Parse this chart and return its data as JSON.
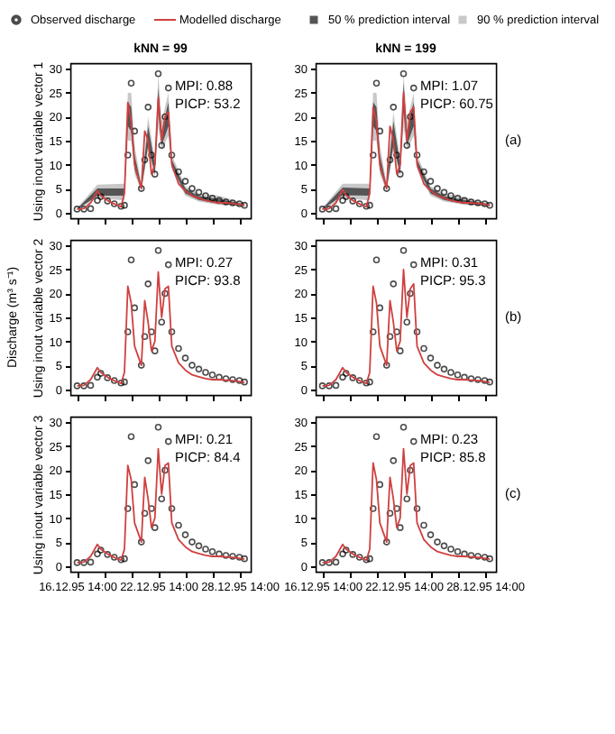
{
  "chart_data": [
    {
      "type": "line",
      "title": "kNN = 99",
      "ylabel": "Using inout variable vector 1",
      "legend": "top",
      "tick_labels": "y",
      "annotations": [
        "MPI:  0.88",
        "PICP: 53.2"
      ],
      "xlim": [
        "1995-12-16T02:00",
        "1995-12-29T10:00"
      ],
      "ylim": [
        -1.2,
        31.2
      ],
      "yticks": [
        0,
        5,
        10,
        15,
        20,
        25,
        30
      ],
      "xticks": [
        {
          "value": "1995-12-16T14:00",
          "label": null
        },
        {
          "value": "1995-12-18T14:00",
          "label": null
        },
        {
          "value": "1995-12-20T14:00",
          "label": null
        },
        {
          "value": "1995-12-22T14:00",
          "label": null
        },
        {
          "value": "1995-12-24T14:00",
          "label": null
        },
        {
          "value": "1995-12-26T14:00",
          "label": null
        },
        {
          "value": "1995-12-28T14:00",
          "label": null
        }
      ],
      "x": [
        "1995-12-16T14:00",
        "1995-12-17T02:00",
        "1995-12-17T14:00",
        "1995-12-18T02:00",
        "1995-12-18T08:00",
        "1995-12-18T20:00",
        "1995-12-19T08:00",
        "1995-12-19T20:00",
        "1995-12-20T02:00",
        "1995-12-20T08:00",
        "1995-12-20T14:00",
        "1995-12-20T20:00",
        "1995-12-21T08:00",
        "1995-12-21T14:00",
        "1995-12-21T20:00",
        "1995-12-22T02:00",
        "1995-12-22T08:00",
        "1995-12-22T14:00",
        "1995-12-22T20:00",
        "1995-12-23T02:00",
        "1995-12-23T08:00",
        "1995-12-23T14:00",
        "1995-12-24T02:00",
        "1995-12-24T14:00",
        "1995-12-25T02:00",
        "1995-12-25T14:00",
        "1995-12-26T02:00",
        "1995-12-26T14:00",
        "1995-12-27T02:00",
        "1995-12-27T14:00",
        "1995-12-28T02:00",
        "1995-12-28T14:00",
        "1995-12-28T23:00"
      ],
      "series": [
        {
          "name": "Observed discharge",
          "type": "scatter",
          "marker": "circle",
          "color": "#000000",
          "values": [
            0.7,
            0.7,
            0.8,
            2.5,
            3.3,
            2.4,
            1.8,
            1.3,
            1.5,
            12,
            27,
            17,
            5,
            11,
            22,
            12,
            8,
            29,
            14,
            20,
            26,
            12,
            8.5,
            6.5,
            5,
            4.2,
            3.5,
            3,
            2.5,
            2.2,
            2,
            1.8,
            1.5
          ]
        },
        {
          "name": "Modelled discharge",
          "color": "#d04040",
          "values": [
            0.7,
            0.8,
            2,
            4.5,
            3.5,
            2.5,
            1.8,
            1.2,
            4,
            23,
            19,
            10,
            5,
            17,
            15,
            8,
            10,
            24,
            15,
            20,
            21,
            10,
            6,
            4.5,
            3.5,
            3,
            2.5,
            2.2,
            2,
            2,
            1.9,
            1.7,
            1.5
          ]
        },
        {
          "name": "50 % prediction interval",
          "type": "area",
          "color": "#555555",
          "x": [
            "1995-12-16T14:00",
            "1995-12-18T02:00",
            "1995-12-20T02:00",
            "1995-12-20T08:00",
            "1995-12-20T14:00",
            "1995-12-20T20:00",
            "1995-12-21T08:00",
            "1995-12-21T20:00",
            "1995-12-22T08:00",
            "1995-12-22T14:00",
            "1995-12-22T20:00",
            "1995-12-23T08:00",
            "1995-12-23T14:00",
            "1995-12-24T14:00",
            "1995-12-25T14:00",
            "1995-12-27T02:00",
            "1995-12-28T23:00"
          ],
          "lower": [
            0.65,
            3.5,
            3.5,
            18,
            17,
            9,
            4.8,
            14,
            8,
            21,
            14,
            18,
            9.5,
            4,
            2.6,
            1.8,
            1.4
          ],
          "values": [
            null,
            null,
            null,
            null,
            null,
            null,
            null,
            null,
            null,
            null,
            null,
            null,
            null,
            null,
            null,
            null,
            null
          ],
          "upper": [
            0.8,
            5,
            5,
            23,
            22,
            12,
            5.5,
            18,
            10,
            26,
            17,
            23,
            11,
            5,
            3.4,
            2.8,
            1.7
          ]
        },
        {
          "name": "90 % prediction interval",
          "type": "area",
          "color": "#c8c8c8",
          "x": [
            "1995-12-16T14:00",
            "1995-12-18T02:00",
            "1995-12-20T02:00",
            "1995-12-20T08:00",
            "1995-12-20T14:00",
            "1995-12-20T20:00",
            "1995-12-21T08:00",
            "1995-12-21T20:00",
            "1995-12-22T08:00",
            "1995-12-22T14:00",
            "1995-12-22T20:00",
            "1995-12-23T08:00",
            "1995-12-23T14:00",
            "1995-12-24T14:00",
            "1995-12-25T14:00",
            "1995-12-27T02:00",
            "1995-12-28T23:00"
          ],
          "lower": [
            0.6,
            3,
            2.5,
            15,
            15,
            8,
            4.5,
            13,
            7.5,
            18,
            13,
            16,
            9,
            3.5,
            2.3,
            1.6,
            1.3
          ],
          "values": [
            null,
            null,
            null,
            null,
            null,
            null,
            null,
            null,
            null,
            null,
            null,
            null,
            null,
            null,
            null,
            null,
            null
          ],
          "upper": [
            0.9,
            5.8,
            6,
            25,
            25,
            14,
            6,
            20,
            11,
            29,
            19,
            25,
            12,
            5.5,
            4,
            3.5,
            1.9
          ]
        }
      ]
    },
    {
      "type": "line",
      "title": "kNN = 199",
      "tick_labels": "y",
      "annotations": [
        "MPI:  1.07",
        "PICP: 60.75",
        "(a)"
      ],
      "xlim": [
        "1995-12-16T02:00",
        "1995-12-29T10:00"
      ],
      "ylim": [
        -1.2,
        31.2
      ],
      "yticks": [
        0,
        5,
        10,
        15,
        20,
        25,
        30
      ],
      "xticks": [
        {
          "value": "1995-12-16T14:00",
          "label": null
        },
        {
          "value": "1995-12-18T14:00",
          "label": null
        },
        {
          "value": "1995-12-20T14:00",
          "label": null
        },
        {
          "value": "1995-12-22T14:00",
          "label": null
        },
        {
          "value": "1995-12-24T14:00",
          "label": null
        },
        {
          "value": "1995-12-26T14:00",
          "label": null
        },
        {
          "value": "1995-12-28T14:00",
          "label": null
        }
      ],
      "x": [
        "1995-12-16T14:00",
        "1995-12-17T02:00",
        "1995-12-17T14:00",
        "1995-12-18T02:00",
        "1995-12-18T08:00",
        "1995-12-18T20:00",
        "1995-12-19T08:00",
        "1995-12-19T20:00",
        "1995-12-20T02:00",
        "1995-12-20T08:00",
        "1995-12-20T14:00",
        "1995-12-20T20:00",
        "1995-12-21T08:00",
        "1995-12-21T14:00",
        "1995-12-21T20:00",
        "1995-12-22T02:00",
        "1995-12-22T08:00",
        "1995-12-22T14:00",
        "1995-12-22T20:00",
        "1995-12-23T02:00",
        "1995-12-23T08:00",
        "1995-12-23T14:00",
        "1995-12-24T02:00",
        "1995-12-24T14:00",
        "1995-12-25T02:00",
        "1995-12-25T14:00",
        "1995-12-26T02:00",
        "1995-12-26T14:00",
        "1995-12-27T02:00",
        "1995-12-27T14:00",
        "1995-12-28T02:00",
        "1995-12-28T14:00",
        "1995-12-28T23:00"
      ],
      "series": [
        {
          "type": "scatter",
          "marker": "circle",
          "color": "#000000",
          "values": [
            0.7,
            0.7,
            0.8,
            2.5,
            3.3,
            2.4,
            1.8,
            1.3,
            1.5,
            12,
            27,
            17,
            5,
            11,
            22,
            12,
            8,
            29,
            14,
            20,
            26,
            12,
            8.5,
            6.5,
            5,
            4.2,
            3.5,
            3,
            2.5,
            2.2,
            2,
            1.8,
            1.5
          ]
        },
        {
          "color": "#d04040",
          "values": [
            0.7,
            0.8,
            2,
            4.8,
            3.6,
            2.5,
            1.8,
            1.2,
            4,
            22,
            19,
            10,
            5,
            18,
            15,
            8,
            10,
            25,
            15,
            21,
            22,
            10,
            6,
            4.5,
            3.5,
            3,
            2.5,
            2.2,
            2,
            2,
            1.9,
            1.7,
            1.5
          ]
        },
        {
          "type": "area",
          "color": "#555555",
          "x": [
            "1995-12-16T14:00",
            "1995-12-18T02:00",
            "1995-12-20T02:00",
            "1995-12-20T08:00",
            "1995-12-20T14:00",
            "1995-12-20T20:00",
            "1995-12-21T08:00",
            "1995-12-21T20:00",
            "1995-12-22T08:00",
            "1995-12-22T14:00",
            "1995-12-22T20:00",
            "1995-12-23T08:00",
            "1995-12-23T14:00",
            "1995-12-24T14:00",
            "1995-12-25T14:00",
            "1995-12-27T02:00",
            "1995-12-28T23:00"
          ],
          "lower": [
            0.65,
            3.6,
            3.5,
            18,
            17,
            9,
            4.8,
            14,
            8,
            21,
            14,
            18,
            9.5,
            4,
            2.6,
            1.8,
            1.4
          ],
          "values": [
            null,
            null,
            null,
            null,
            null,
            null,
            null,
            null,
            null,
            null,
            null,
            null,
            null,
            null,
            null,
            null,
            null
          ],
          "upper": [
            0.8,
            5.2,
            5,
            23,
            22,
            12,
            5.5,
            19,
            10,
            27,
            17,
            23,
            11,
            5,
            3.4,
            2.6,
            1.7
          ]
        },
        {
          "type": "area",
          "color": "#c8c8c8",
          "x": [
            "1995-12-16T14:00",
            "1995-12-18T02:00",
            "1995-12-20T02:00",
            "1995-12-20T08:00",
            "1995-12-20T14:00",
            "1995-12-20T20:00",
            "1995-12-21T08:00",
            "1995-12-21T20:00",
            "1995-12-22T08:00",
            "1995-12-22T14:00",
            "1995-12-22T20:00",
            "1995-12-23T08:00",
            "1995-12-23T14:00",
            "1995-12-24T14:00",
            "1995-12-25T14:00",
            "1995-12-27T02:00",
            "1995-12-28T23:00"
          ],
          "lower": [
            0.6,
            3,
            2.5,
            15,
            15,
            8,
            4.5,
            13,
            7.5,
            18,
            13,
            16,
            9,
            3.5,
            2.3,
            1.6,
            1.3
          ],
          "values": [
            null,
            null,
            null,
            null,
            null,
            null,
            null,
            null,
            null,
            null,
            null,
            null,
            null,
            null,
            null,
            null,
            null
          ],
          "upper": [
            0.9,
            6,
            6,
            25,
            25,
            14,
            6,
            21,
            11,
            29,
            19,
            25,
            12,
            5.5,
            4,
            3.2,
            1.9
          ]
        }
      ]
    },
    {
      "type": "line",
      "ylabel": "Using inout variable vector 2\nDischarge (m³ s⁻¹)",
      "tick_labels": "y",
      "annotations": [
        "MPI:  0.27",
        "PICP: 93.8"
      ],
      "xlim": [
        "1995-12-16T02:00",
        "1995-12-29T10:00"
      ],
      "ylim": [
        -1.2,
        31.2
      ],
      "yticks": [
        0,
        5,
        10,
        15,
        20,
        25,
        30
      ],
      "xticks": [
        {
          "value": "1995-12-16T14:00",
          "label": null
        },
        {
          "value": "1995-12-18T14:00",
          "label": null
        },
        {
          "value": "1995-12-20T14:00",
          "label": null
        },
        {
          "value": "1995-12-22T14:00",
          "label": null
        },
        {
          "value": "1995-12-24T14:00",
          "label": null
        },
        {
          "value": "1995-12-26T14:00",
          "label": null
        },
        {
          "value": "1995-12-28T14:00",
          "label": null
        }
      ],
      "x": [
        "1995-12-16T14:00",
        "1995-12-17T02:00",
        "1995-12-17T14:00",
        "1995-12-18T02:00",
        "1995-12-18T08:00",
        "1995-12-18T20:00",
        "1995-12-19T08:00",
        "1995-12-19T20:00",
        "1995-12-20T02:00",
        "1995-12-20T08:00",
        "1995-12-20T14:00",
        "1995-12-20T20:00",
        "1995-12-21T08:00",
        "1995-12-21T14:00",
        "1995-12-21T20:00",
        "1995-12-22T02:00",
        "1995-12-22T08:00",
        "1995-12-22T14:00",
        "1995-12-22T20:00",
        "1995-12-23T02:00",
        "1995-12-23T08:00",
        "1995-12-23T14:00",
        "1995-12-24T02:00",
        "1995-12-24T14:00",
        "1995-12-25T02:00",
        "1995-12-25T14:00",
        "1995-12-26T02:00",
        "1995-12-26T14:00",
        "1995-12-27T02:00",
        "1995-12-27T14:00",
        "1995-12-28T02:00",
        "1995-12-28T14:00",
        "1995-12-28T23:00"
      ],
      "series": [
        {
          "type": "scatter",
          "marker": "circle",
          "color": "#000000",
          "values": [
            0.7,
            0.7,
            0.8,
            2.5,
            3.3,
            2.4,
            1.8,
            1.3,
            1.5,
            12,
            27,
            17,
            5,
            11,
            22,
            12,
            8,
            29,
            14,
            20,
            26,
            12,
            8.5,
            6.5,
            5,
            4.2,
            3.5,
            3,
            2.5,
            2.2,
            2,
            1.8,
            1.5
          ]
        },
        {
          "color": "#d04040",
          "values": [
            0.7,
            0.8,
            2,
            4.5,
            3.5,
            2.5,
            1.8,
            1.2,
            3.5,
            21.5,
            18,
            9,
            5,
            18.5,
            14,
            8,
            10,
            24.5,
            15,
            21,
            21.5,
            9,
            5.5,
            4,
            3,
            2.6,
            2.2,
            2,
            2,
            1.9,
            1.8,
            1.6,
            1.4
          ]
        }
      ]
    },
    {
      "type": "line",
      "tick_labels": "y",
      "annotations": [
        "MPI:  0.31",
        "PICP: 95.3",
        "(b)"
      ],
      "xlim": [
        "1995-12-16T02:00",
        "1995-12-29T10:00"
      ],
      "ylim": [
        -1.2,
        31.2
      ],
      "yticks": [
        0,
        5,
        10,
        15,
        20,
        25,
        30
      ],
      "xticks": [
        {
          "value": "1995-12-16T14:00",
          "label": null
        },
        {
          "value": "1995-12-18T14:00",
          "label": null
        },
        {
          "value": "1995-12-20T14:00",
          "label": null
        },
        {
          "value": "1995-12-22T14:00",
          "label": null
        },
        {
          "value": "1995-12-24T14:00",
          "label": null
        },
        {
          "value": "1995-12-26T14:00",
          "label": null
        },
        {
          "value": "1995-12-28T14:00",
          "label": null
        }
      ],
      "x": [
        "1995-12-16T14:00",
        "1995-12-17T02:00",
        "1995-12-17T14:00",
        "1995-12-18T02:00",
        "1995-12-18T08:00",
        "1995-12-18T20:00",
        "1995-12-19T08:00",
        "1995-12-19T20:00",
        "1995-12-20T02:00",
        "1995-12-20T08:00",
        "1995-12-20T14:00",
        "1995-12-20T20:00",
        "1995-12-21T08:00",
        "1995-12-21T14:00",
        "1995-12-21T20:00",
        "1995-12-22T02:00",
        "1995-12-22T08:00",
        "1995-12-22T14:00",
        "1995-12-22T20:00",
        "1995-12-23T02:00",
        "1995-12-23T08:00",
        "1995-12-23T14:00",
        "1995-12-24T02:00",
        "1995-12-24T14:00",
        "1995-12-25T02:00",
        "1995-12-25T14:00",
        "1995-12-26T02:00",
        "1995-12-26T14:00",
        "1995-12-27T02:00",
        "1995-12-27T14:00",
        "1995-12-28T02:00",
        "1995-12-28T14:00",
        "1995-12-28T23:00"
      ],
      "series": [
        {
          "type": "scatter",
          "marker": "circle",
          "color": "#000000",
          "values": [
            0.7,
            0.7,
            0.8,
            2.5,
            3.3,
            2.4,
            1.8,
            1.3,
            1.5,
            12,
            27,
            17,
            5,
            11,
            22,
            12,
            8,
            29,
            14,
            20,
            26,
            12,
            8.5,
            6.5,
            5,
            4.2,
            3.5,
            3,
            2.5,
            2.2,
            2,
            1.8,
            1.5
          ]
        },
        {
          "color": "#d04040",
          "values": [
            0.7,
            0.8,
            2,
            4.5,
            3.5,
            2.5,
            1.8,
            1.2,
            3.5,
            21.5,
            18,
            9,
            5,
            18.5,
            14,
            8,
            10,
            25,
            15,
            21,
            22,
            9,
            5.5,
            4,
            3,
            2.6,
            2.2,
            2,
            2,
            1.9,
            1.8,
            1.6,
            1.4
          ]
        }
      ]
    },
    {
      "type": "line",
      "ylabel": "Using inout variable vector 3",
      "annotations": [
        "MPI:  0.21",
        "PICP: 84.4"
      ],
      "xlim": [
        "1995-12-16T02:00",
        "1995-12-29T10:00"
      ],
      "ylim": [
        -1.2,
        31.2
      ],
      "yticks": [
        0,
        5,
        10,
        15,
        20,
        25,
        30
      ],
      "xticks": [
        {
          "value": "1995-12-16T14:00",
          "label": "16.12.95 14:00"
        },
        {
          "value": "1995-12-18T14:00",
          "label": null
        },
        {
          "value": "1995-12-20T14:00",
          "label": null
        },
        {
          "value": "1995-12-22T14:00",
          "label": "22.12.95 14:00"
        },
        {
          "value": "1995-12-24T14:00",
          "label": null
        },
        {
          "value": "1995-12-26T14:00",
          "label": null
        },
        {
          "value": "1995-12-28T14:00",
          "label": "28.12.95 14:00"
        }
      ],
      "x": [
        "1995-12-16T14:00",
        "1995-12-17T02:00",
        "1995-12-17T14:00",
        "1995-12-18T02:00",
        "1995-12-18T08:00",
        "1995-12-18T20:00",
        "1995-12-19T08:00",
        "1995-12-19T20:00",
        "1995-12-20T02:00",
        "1995-12-20T08:00",
        "1995-12-20T14:00",
        "1995-12-20T20:00",
        "1995-12-21T08:00",
        "1995-12-21T14:00",
        "1995-12-21T20:00",
        "1995-12-22T02:00",
        "1995-12-22T08:00",
        "1995-12-22T14:00",
        "1995-12-22T20:00",
        "1995-12-23T02:00",
        "1995-12-23T08:00",
        "1995-12-23T14:00",
        "1995-12-24T02:00",
        "1995-12-24T14:00",
        "1995-12-25T02:00",
        "1995-12-25T14:00",
        "1995-12-26T02:00",
        "1995-12-26T14:00",
        "1995-12-27T02:00",
        "1995-12-27T14:00",
        "1995-12-28T02:00",
        "1995-12-28T14:00",
        "1995-12-28T23:00"
      ],
      "series": [
        {
          "type": "scatter",
          "marker": "circle",
          "color": "#000000",
          "values": [
            0.7,
            0.7,
            0.8,
            2.5,
            3.3,
            2.4,
            1.8,
            1.3,
            1.5,
            12,
            27,
            17,
            5,
            11,
            22,
            12,
            8,
            29,
            14,
            20,
            26,
            12,
            8.5,
            6.5,
            5,
            4.2,
            3.5,
            3,
            2.5,
            2.2,
            2,
            1.8,
            1.5
          ]
        },
        {
          "color": "#d04040",
          "values": [
            0.7,
            0.8,
            2,
            4.5,
            3.5,
            2.5,
            1.8,
            1.2,
            3.5,
            21,
            18,
            9,
            5,
            18.5,
            14,
            8,
            10,
            24.5,
            15,
            21,
            21.5,
            9,
            5.5,
            4,
            3,
            2.6,
            2.2,
            2,
            2,
            1.9,
            1.8,
            1.6,
            1.4
          ]
        }
      ]
    },
    {
      "type": "line",
      "annotations": [
        "MPI:  0.23",
        "PICP: 85.8",
        "(c)"
      ],
      "xlim": [
        "1995-12-16T02:00",
        "1995-12-29T10:00"
      ],
      "ylim": [
        -1.2,
        31.2
      ],
      "yticks": [
        0,
        5,
        10,
        15,
        20,
        25,
        30
      ],
      "xticks": [
        {
          "value": "1995-12-16T14:00",
          "label": "16.12.95 14:00"
        },
        {
          "value": "1995-12-18T14:00",
          "label": null
        },
        {
          "value": "1995-12-20T14:00",
          "label": null
        },
        {
          "value": "1995-12-22T14:00",
          "label": "22.12.95 14:00"
        },
        {
          "value": "1995-12-24T14:00",
          "label": null
        },
        {
          "value": "1995-12-26T14:00",
          "label": null
        },
        {
          "value": "1995-12-28T14:00",
          "label": "28.12.95 14:00"
        }
      ],
      "x": [
        "1995-12-16T14:00",
        "1995-12-17T02:00",
        "1995-12-17T14:00",
        "1995-12-18T02:00",
        "1995-12-18T08:00",
        "1995-12-18T20:00",
        "1995-12-19T08:00",
        "1995-12-19T20:00",
        "1995-12-20T02:00",
        "1995-12-20T08:00",
        "1995-12-20T14:00",
        "1995-12-20T20:00",
        "1995-12-21T08:00",
        "1995-12-21T14:00",
        "1995-12-21T20:00",
        "1995-12-22T02:00",
        "1995-12-22T08:00",
        "1995-12-22T14:00",
        "1995-12-22T20:00",
        "1995-12-23T02:00",
        "1995-12-23T08:00",
        "1995-12-23T14:00",
        "1995-12-24T02:00",
        "1995-12-24T14:00",
        "1995-12-25T02:00",
        "1995-12-25T14:00",
        "1995-12-26T02:00",
        "1995-12-26T14:00",
        "1995-12-27T02:00",
        "1995-12-27T14:00",
        "1995-12-28T02:00",
        "1995-12-28T14:00",
        "1995-12-28T23:00"
      ],
      "series": [
        {
          "type": "scatter",
          "marker": "circle",
          "color": "#000000",
          "values": [
            0.7,
            0.7,
            0.8,
            2.5,
            3.3,
            2.4,
            1.8,
            1.3,
            1.5,
            12,
            27,
            17,
            5,
            11,
            22,
            12,
            8,
            29,
            14,
            20,
            26,
            12,
            8.5,
            6.5,
            5,
            4.2,
            3.5,
            3,
            2.5,
            2.2,
            2,
            1.8,
            1.5
          ]
        },
        {
          "color": "#d04040",
          "values": [
            0.7,
            0.8,
            2,
            4.5,
            3.5,
            2.5,
            1.8,
            1.2,
            3.5,
            21.5,
            18,
            9,
            5,
            18.5,
            14,
            8,
            10,
            24.5,
            15,
            21,
            21.5,
            9,
            5.5,
            4,
            3,
            2.6,
            2.2,
            2,
            2,
            1.9,
            1.8,
            1.6,
            1.4
          ]
        }
      ]
    }
  ]
}
